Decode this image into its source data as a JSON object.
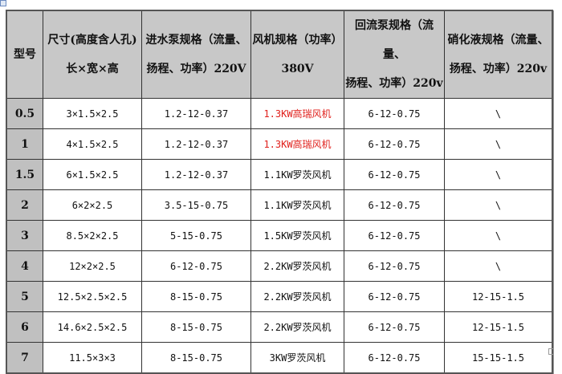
{
  "headers": [
    {
      "line1": "型号",
      "line2": ""
    },
    {
      "line1": "尺寸(高度含人孔)",
      "line2": "长×宽×高"
    },
    {
      "line1": "进水泵规格（流量、",
      "line2": "扬程、功率）220V"
    },
    {
      "line1": "风机规格（功率）",
      "line2": "380V"
    },
    {
      "line1": "回流泵规格（流量、",
      "line2": "扬程、功率）220v"
    },
    {
      "line1": "硝化液规格（流量、",
      "line2": "扬程、功率）220v"
    }
  ],
  "rows": [
    {
      "model": "0.5",
      "size": "3×1.5×2.5",
      "inlet": "1.2-12-0.37",
      "fan": "1.3KW高瑞风机",
      "fan_red": true,
      "reflux": "6-12-0.75",
      "nitr": "\\"
    },
    {
      "model": "1",
      "size": "4×1.5×2.5",
      "inlet": "1.2-12-0.37",
      "fan": "1.3KW高瑞风机",
      "fan_red": true,
      "reflux": "6-12-0.75",
      "nitr": "\\"
    },
    {
      "model": "1.5",
      "size": "6×1.5×2.5",
      "inlet": "1.2-12-0.37",
      "fan": "1.1KW罗茨风机",
      "fan_red": false,
      "reflux": "6-12-0.75",
      "nitr": "\\"
    },
    {
      "model": "2",
      "size": "6×2×2.5",
      "inlet": "3.5-15-0.75",
      "fan": "1.1KW罗茨风机",
      "fan_red": false,
      "reflux": "6-12-0.75",
      "nitr": "\\"
    },
    {
      "model": "3",
      "size": "8.5×2×2.5",
      "inlet": "5-15-0.75",
      "fan": "1.5KW罗茨风机",
      "fan_red": false,
      "reflux": "6-12-0.75",
      "nitr": "\\"
    },
    {
      "model": "4",
      "size": "12×2×2.5",
      "inlet": "6-12-0.75",
      "fan": "2.2KW罗茨风机",
      "fan_red": false,
      "reflux": "6-12-0.75",
      "nitr": "\\"
    },
    {
      "model": "5",
      "size": "12.5×2.5×2.5",
      "inlet": "8-15-0.75",
      "fan": "2.2KW罗茨风机",
      "fan_red": false,
      "reflux": "6-12-0.75",
      "nitr": "12-15-1.5"
    },
    {
      "model": "6",
      "size": "14.6×2.5×2.5",
      "inlet": "8-15-0.75",
      "fan": "2.2KW罗茨风机",
      "fan_red": false,
      "reflux": "6-12-0.75",
      "nitr": "12-15-1.5"
    },
    {
      "model": "7",
      "size": "11.5×3×3",
      "inlet": "8-15-0.75",
      "fan": "3KW罗茨风机",
      "fan_red": false,
      "reflux": "6-12-0.75",
      "nitr": "15-15-1.5"
    }
  ],
  "colors": {
    "highlight": "#e0201c",
    "header_bg": "#c8c8c8",
    "model_bg": "#c0c0c0"
  }
}
